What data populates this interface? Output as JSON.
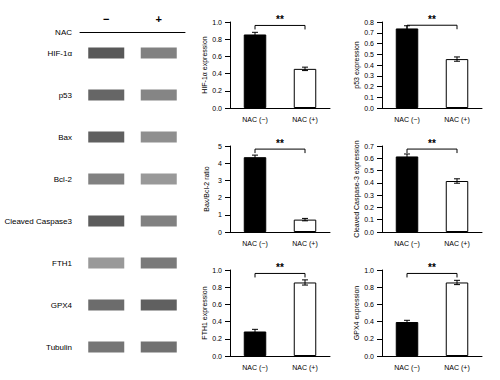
{
  "chart_data": [
    {
      "type": "heatmap",
      "xlabel": "NAC",
      "x": [
        "−",
        "+"
      ],
      "y": [
        "HIF-1α",
        "p53",
        "Bax",
        "Bcl-2",
        "Cleaved Caspase3",
        "FTH1",
        "GPX4",
        "Tubulin"
      ],
      "cells": [
        [
          0.82,
          0.62
        ],
        [
          0.75,
          0.6
        ],
        [
          0.78,
          0.55
        ],
        [
          0.62,
          0.5
        ],
        [
          0.8,
          0.62
        ],
        [
          0.5,
          0.65
        ],
        [
          0.72,
          0.78
        ],
        [
          0.68,
          0.7
        ]
      ]
    },
    {
      "type": "bar",
      "ylabel": "HIF-1α expression",
      "categories": [
        "NAC (−)",
        "NAC (+)"
      ],
      "values": [
        0.855,
        0.455
      ],
      "errors": [
        0.025,
        0.02
      ],
      "colors": [
        "black",
        "white"
      ],
      "ylim": [
        0.0,
        1.0
      ],
      "yticks": [
        {
          "value": 0,
          "label": "0.0"
        },
        0.2,
        0.4,
        0.6,
        0.8,
        {
          "value": 1,
          "label": "1.0"
        }
      ],
      "annotations": [
        {
          "text": "**",
          "y": 0.96
        }
      ],
      "grid": false
    },
    {
      "type": "bar",
      "ylabel": "p53 expression",
      "categories": [
        "NAC (−)",
        "NAC (+)"
      ],
      "values": [
        0.74,
        0.455
      ],
      "errors": [
        0.025,
        0.02
      ],
      "colors": [
        "black",
        "white"
      ],
      "ylim": [
        0.0,
        0.8
      ],
      "yticks": [
        {
          "value": 0,
          "label": "0.0"
        },
        0.1,
        0.2,
        0.3,
        0.4,
        0.5,
        0.6,
        0.7,
        0.8
      ],
      "annotations": [
        {
          "text": "**",
          "y": 0.77
        }
      ],
      "grid": false
    },
    {
      "type": "bar",
      "ylabel": "Bax/Bcl-2 ratio",
      "categories": [
        "NAC (−)",
        "NAC (+)"
      ],
      "values": [
        4.35,
        0.72
      ],
      "errors": [
        0.12,
        0.07
      ],
      "colors": [
        "black",
        "white"
      ],
      "ylim": [
        0,
        5
      ],
      "yticks": [
        0,
        1,
        2,
        3,
        4,
        5
      ],
      "annotations": [
        {
          "text": "**",
          "y": 4.82
        }
      ],
      "grid": false
    },
    {
      "type": "bar",
      "ylabel": "Cleaved Caspase-3 expression",
      "categories": [
        "NAC (−)",
        "NAC (+)"
      ],
      "values": [
        0.615,
        0.415
      ],
      "errors": [
        0.02,
        0.018
      ],
      "colors": [
        "black",
        "white"
      ],
      "ylim": [
        0.0,
        0.7
      ],
      "yticks": [
        {
          "value": 0,
          "label": "0.0"
        },
        0.1,
        0.2,
        0.3,
        0.4,
        0.5,
        0.6,
        0.7
      ],
      "annotations": [
        {
          "text": "**",
          "y": 0.675
        }
      ],
      "grid": false
    },
    {
      "type": "bar",
      "ylabel": "FTH1 expression",
      "categories": [
        "NAC (−)",
        "NAC (+)"
      ],
      "values": [
        0.285,
        0.855
      ],
      "errors": [
        0.025,
        0.03
      ],
      "colors": [
        "black",
        "white"
      ],
      "ylim": [
        0.0,
        1.0
      ],
      "yticks": [
        {
          "value": 0,
          "label": "0.0"
        },
        0.2,
        0.4,
        0.6,
        0.8,
        {
          "value": 1,
          "label": "1.0"
        }
      ],
      "annotations": [
        {
          "text": "**",
          "y": 0.96
        }
      ],
      "grid": false
    },
    {
      "type": "bar",
      "ylabel": "GPX4 expression",
      "categories": [
        "NAC (−)",
        "NAC (+)"
      ],
      "values": [
        0.395,
        0.855
      ],
      "errors": [
        0.02,
        0.025
      ],
      "colors": [
        "black",
        "white"
      ],
      "ylim": [
        0.0,
        1.0
      ],
      "yticks": [
        {
          "value": 0,
          "label": "0.0"
        },
        0.2,
        0.4,
        0.6,
        0.8,
        {
          "value": 1,
          "label": "1.0"
        }
      ],
      "annotations": [
        {
          "text": "**",
          "y": 0.96
        }
      ],
      "grid": false
    }
  ]
}
